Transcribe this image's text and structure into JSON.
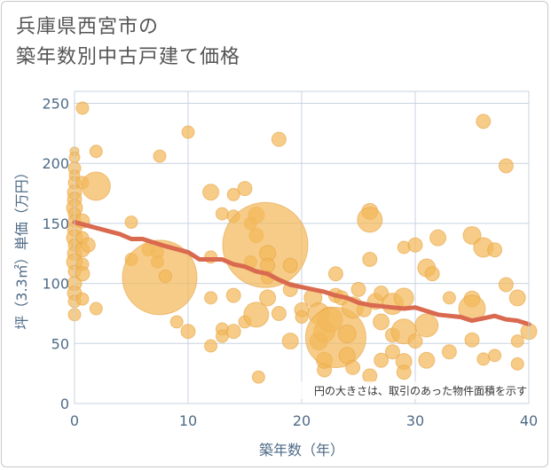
{
  "title_line1": "兵庫県西宮市の",
  "title_line2": "築年数別中古戸建て価格",
  "chart_data": {
    "type": "scatter",
    "xlabel": "築年数（年）",
    "ylabel": "坪（3.3㎡）単価（万円）",
    "xlim": [
      0,
      40
    ],
    "ylim": [
      0,
      260
    ],
    "x_ticks": [
      "0",
      "10",
      "20",
      "30",
      "40"
    ],
    "y_ticks": [
      "0",
      "50",
      "100",
      "150",
      "200",
      "250"
    ],
    "grid": true,
    "annotation": "円の大きさは、取引のあった物件面積を示す",
    "colors": {
      "bubble": "#f3b95a",
      "bubble_stroke": "#e6a443",
      "trend": "#d9694f",
      "grid": "#c8d3e0",
      "axis_text": "#4f6b87"
    },
    "points": [
      [
        0,
        210,
        5
      ],
      [
        0,
        205,
        6
      ],
      [
        0,
        196,
        7
      ],
      [
        0,
        190,
        6
      ],
      [
        0,
        184,
        7
      ],
      [
        0,
        176,
        8
      ],
      [
        0,
        170,
        8
      ],
      [
        0,
        163,
        9
      ],
      [
        0,
        158,
        7
      ],
      [
        0,
        152,
        7
      ],
      [
        0,
        145,
        8
      ],
      [
        0,
        138,
        9
      ],
      [
        0,
        132,
        7
      ],
      [
        0,
        125,
        8
      ],
      [
        0,
        118,
        9
      ],
      [
        0,
        110,
        7
      ],
      [
        0,
        100,
        8
      ],
      [
        0,
        92,
        8
      ],
      [
        0,
        85,
        7
      ],
      [
        0,
        74,
        7
      ],
      [
        0.7,
        246,
        7
      ],
      [
        0.7,
        184,
        7
      ],
      [
        0.7,
        152,
        8
      ],
      [
        0.7,
        138,
        7
      ],
      [
        0.7,
        128,
        8
      ],
      [
        0.7,
        116,
        7
      ],
      [
        0.7,
        108,
        8
      ],
      [
        0.7,
        87,
        7
      ],
      [
        1.2,
        132,
        8
      ],
      [
        1.9,
        210,
        7
      ],
      [
        1.9,
        181,
        16
      ],
      [
        1.9,
        79,
        7
      ],
      [
        5,
        151,
        7
      ],
      [
        5,
        120,
        7
      ],
      [
        6.5,
        128,
        7
      ],
      [
        7.5,
        206,
        7
      ],
      [
        7.3,
        126,
        7
      ],
      [
        7.3,
        118,
        7
      ],
      [
        7.5,
        105,
        42
      ],
      [
        8,
        106,
        7
      ],
      [
        9,
        68,
        7
      ],
      [
        10,
        226,
        7
      ],
      [
        10,
        60,
        8
      ],
      [
        12,
        176,
        9
      ],
      [
        12,
        122,
        7
      ],
      [
        12,
        88,
        7
      ],
      [
        12,
        48,
        7
      ],
      [
        13,
        158,
        7
      ],
      [
        13,
        62,
        7
      ],
      [
        13,
        56,
        7
      ],
      [
        14,
        174,
        7
      ],
      [
        14,
        156,
        7
      ],
      [
        14,
        90,
        8
      ],
      [
        14,
        60,
        8
      ],
      [
        15,
        179,
        8
      ],
      [
        15,
        68,
        7
      ],
      [
        15.5,
        150,
        7
      ],
      [
        15.5,
        118,
        7
      ],
      [
        16,
        157,
        9
      ],
      [
        16,
        140,
        8
      ],
      [
        16,
        74,
        14
      ],
      [
        16.2,
        22,
        7
      ],
      [
        16.8,
        132,
        48
      ],
      [
        17,
        125,
        9
      ],
      [
        17,
        115,
        8
      ],
      [
        17,
        105,
        7
      ],
      [
        17,
        88,
        9
      ],
      [
        18,
        220,
        8
      ],
      [
        18,
        75,
        8
      ],
      [
        19,
        115,
        8
      ],
      [
        19,
        95,
        8
      ],
      [
        19,
        52,
        9
      ],
      [
        20,
        78,
        8
      ],
      [
        20,
        72,
        7
      ],
      [
        21,
        88,
        10
      ],
      [
        21.5,
        75,
        12
      ],
      [
        21.5,
        52,
        10
      ],
      [
        22,
        60,
        12
      ],
      [
        22,
        28,
        8
      ],
      [
        22,
        36,
        9
      ],
      [
        22.5,
        70,
        14
      ],
      [
        23,
        55,
        34
      ],
      [
        23,
        108,
        8
      ],
      [
        23,
        90,
        8
      ],
      [
        23.5,
        88,
        8
      ],
      [
        24,
        58,
        10
      ],
      [
        24,
        40,
        9
      ],
      [
        24.5,
        80,
        12
      ],
      [
        24.5,
        30,
        8
      ],
      [
        25,
        95,
        8
      ],
      [
        25.5,
        78,
        8
      ],
      [
        26,
        160,
        9
      ],
      [
        26,
        153,
        14
      ],
      [
        26,
        120,
        8
      ],
      [
        26,
        23,
        8
      ],
      [
        26.5,
        85,
        9
      ],
      [
        27,
        92,
        8
      ],
      [
        27,
        68,
        9
      ],
      [
        27,
        36,
        8
      ],
      [
        28,
        83,
        12
      ],
      [
        28,
        57,
        8
      ],
      [
        28,
        43,
        8
      ],
      [
        29,
        130,
        7
      ],
      [
        29,
        88,
        11
      ],
      [
        29,
        60,
        14
      ],
      [
        29,
        35,
        9
      ],
      [
        29,
        26,
        8
      ],
      [
        30,
        132,
        8
      ],
      [
        30,
        52,
        8
      ],
      [
        31,
        113,
        10
      ],
      [
        31,
        65,
        13
      ],
      [
        31,
        36,
        9
      ],
      [
        31.5,
        108,
        8
      ],
      [
        32,
        138,
        9
      ],
      [
        33,
        88,
        7
      ],
      [
        33,
        43,
        8
      ],
      [
        35,
        140,
        10
      ],
      [
        35,
        87,
        9
      ],
      [
        35,
        79,
        15
      ],
      [
        35,
        53,
        8
      ],
      [
        36,
        235,
        8
      ],
      [
        36,
        130,
        11
      ],
      [
        36,
        37,
        7
      ],
      [
        37,
        128,
        8
      ],
      [
        37,
        40,
        7
      ],
      [
        38,
        198,
        8
      ],
      [
        38,
        99,
        8
      ],
      [
        39,
        88,
        9
      ],
      [
        39,
        52,
        7
      ],
      [
        39,
        33,
        7
      ],
      [
        40,
        60,
        9
      ]
    ],
    "trend": [
      [
        0,
        151
      ],
      [
        2,
        146
      ],
      [
        4,
        141
      ],
      [
        5,
        137
      ],
      [
        6,
        137
      ],
      [
        7,
        134
      ],
      [
        8,
        131
      ],
      [
        10,
        126
      ],
      [
        11,
        120
      ],
      [
        12,
        120
      ],
      [
        13,
        120
      ],
      [
        14,
        116
      ],
      [
        15,
        114
      ],
      [
        16,
        110
      ],
      [
        17,
        108
      ],
      [
        18,
        103
      ],
      [
        19,
        99
      ],
      [
        20,
        97
      ],
      [
        21,
        95
      ],
      [
        22,
        93
      ],
      [
        23,
        90
      ],
      [
        24,
        88
      ],
      [
        25,
        84
      ],
      [
        26,
        82
      ],
      [
        27,
        81
      ],
      [
        28,
        80
      ],
      [
        29,
        79
      ],
      [
        30,
        80
      ],
      [
        31,
        77
      ],
      [
        32,
        74
      ],
      [
        33,
        73
      ],
      [
        34,
        72
      ],
      [
        35,
        69
      ],
      [
        36,
        71
      ],
      [
        37,
        73
      ],
      [
        38,
        70
      ],
      [
        39,
        69
      ],
      [
        40,
        66
      ]
    ]
  }
}
